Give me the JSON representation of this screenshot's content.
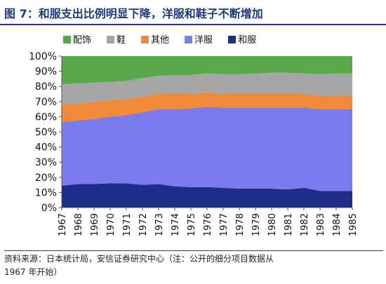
{
  "header": {
    "title": "图 7：和服支出比例明显下降，洋服和鞋子不断增加"
  },
  "footer": {
    "source_line1": "资料来源：日本统计局，安信证券研究中心（注：公开的细分项目数据从",
    "source_line2": "1967 年开始）"
  },
  "chart_data": {
    "type": "area",
    "stacked": true,
    "title": "",
    "xlabel": "",
    "ylabel": "",
    "ylim": [
      0,
      100
    ],
    "y_unit": "%",
    "yticks": [
      0,
      10,
      20,
      30,
      40,
      50,
      60,
      70,
      80,
      90,
      100
    ],
    "ytick_labels": [
      "0%",
      "10%",
      "20%",
      "30%",
      "40%",
      "50%",
      "60%",
      "70%",
      "80%",
      "90%",
      "100%"
    ],
    "grid": false,
    "legend_position": "top",
    "categories": [
      "1967",
      "1968",
      "1969",
      "1970",
      "1971",
      "1972",
      "1973",
      "1974",
      "1975",
      "1976",
      "1977",
      "1978",
      "1979",
      "1980",
      "1981",
      "1982",
      "1983",
      "1984",
      "1985"
    ],
    "series": [
      {
        "name": "和服",
        "color": "#1f2d8a",
        "values": [
          14.5,
          15.5,
          15.5,
          16,
          16,
          15,
          15.5,
          14,
          13.5,
          13.5,
          13,
          12.5,
          12.5,
          12.5,
          12,
          13,
          11,
          11,
          11
        ]
      },
      {
        "name": "洋服",
        "color": "#7b7bf0",
        "values": [
          42,
          42,
          43,
          44,
          45,
          48,
          49.5,
          51,
          52,
          53,
          53,
          53.5,
          53.5,
          53.5,
          54,
          53,
          54,
          54,
          54
        ]
      },
      {
        "name": "其他",
        "color": "#f08a3a",
        "values": [
          11.5,
          11.5,
          11.5,
          11,
          11,
          10.5,
          10,
          10,
          9.5,
          9.5,
          9,
          9,
          9,
          9,
          9,
          9,
          9,
          9,
          9
        ]
      },
      {
        "name": "鞋",
        "color": "#a6a6a6",
        "values": [
          13.5,
          13,
          12.5,
          12,
          11.5,
          12,
          12,
          12.5,
          12.5,
          12.5,
          13,
          13,
          13.5,
          14,
          14,
          13.5,
          14,
          14.5,
          14.5
        ]
      },
      {
        "name": "配饰",
        "color": "#5aa64a",
        "values": [
          18.5,
          18,
          17.5,
          17,
          16.5,
          14.5,
          13,
          12.5,
          12.5,
          11.5,
          12,
          12,
          11.5,
          11,
          11,
          11.5,
          12,
          11.5,
          11.5
        ]
      }
    ],
    "legend_order": [
      "配饰",
      "鞋",
      "其他",
      "洋服",
      "和服"
    ]
  }
}
